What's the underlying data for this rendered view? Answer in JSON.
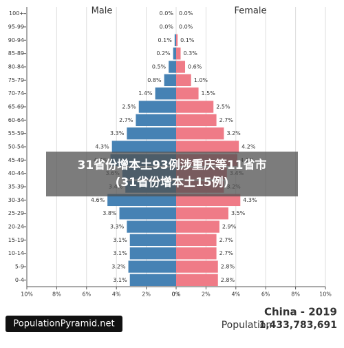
{
  "chart_data": {
    "type": "pyramid",
    "region": "China - 2019",
    "population_label": "Population:",
    "population": "1,433,783,691",
    "source": "PopulationPyramid.net",
    "overlay": [
      "31省份增本土93例涉重庆等11省市",
      "(31省份增本土15例)"
    ],
    "categories": [
      "100+",
      "95-99",
      "90-94",
      "85-89",
      "80-84",
      "75-79",
      "70-74",
      "65-69",
      "60-64",
      "55-59",
      "50-54",
      "45-49",
      "40-44",
      "35-39",
      "30-34",
      "25-29",
      "20-24",
      "15-19",
      "10-14",
      "5-9",
      "0-4"
    ],
    "series": [
      {
        "name": "Male",
        "color": "#4682b4",
        "values": [
          0.0,
          0.0,
          0.1,
          0.2,
          0.5,
          0.8,
          1.4,
          2.5,
          2.7,
          3.3,
          4.3,
          4.4,
          3.6,
          3.4,
          4.6,
          3.8,
          3.3,
          3.1,
          3.1,
          3.2,
          3.1
        ],
        "value_labels": [
          "0.0%",
          "0.0%",
          "0.1%",
          "0.2%",
          "0.5%",
          "0.8%",
          "1.4%",
          "2.5%",
          "2.7%",
          "3.3%",
          "4.3%",
          "4.4%",
          "3.6%",
          "3.4%",
          "4.6%",
          "3.8%",
          "3.3%",
          "3.1%",
          "3.1%",
          "3.2%",
          "3.1%"
        ]
      },
      {
        "name": "Female",
        "color": "#ef7b87",
        "values": [
          0.0,
          0.0,
          0.1,
          0.3,
          0.6,
          1.0,
          1.5,
          2.5,
          2.7,
          3.2,
          4.2,
          4.1,
          3.4,
          3.2,
          4.3,
          3.5,
          2.9,
          2.7,
          2.7,
          2.8,
          2.8
        ],
        "value_labels": [
          "0.0%",
          "0.0%",
          "0.1%",
          "0.3%",
          "0.6%",
          "1.0%",
          "1.5%",
          "2.5%",
          "2.7%",
          "3.2%",
          "4.2%",
          "4.1%",
          "3.4%",
          "3.2%",
          "4.3%",
          "3.5%",
          "2.9%",
          "2.7%",
          "2.7%",
          "2.8%",
          "2.8%"
        ]
      }
    ],
    "xlim": [
      0,
      10
    ],
    "xticks": [
      {
        "value": 10,
        "label": "10%"
      },
      {
        "value": 8,
        "label": "8%"
      },
      {
        "value": 6,
        "label": "6%"
      },
      {
        "value": 4,
        "label": "4%"
      },
      {
        "value": 2,
        "label": "2%"
      },
      {
        "value": 0,
        "label": "0%"
      }
    ],
    "grid": true
  }
}
